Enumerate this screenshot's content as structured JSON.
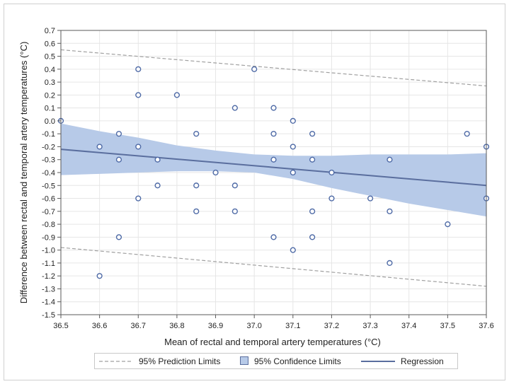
{
  "chart_data": {
    "type": "scatter",
    "title": "",
    "xlabel": "Mean of rectal and temporal artery temperatures (°C)",
    "ylabel": "Difference between rectal and temporal artery temperatures (°C)",
    "xlim": [
      36.5,
      37.6
    ],
    "ylim": [
      -1.5,
      0.7
    ],
    "x_ticks": [
      "36.5",
      "36.6",
      "36.7",
      "36.8",
      "36.9",
      "37.0",
      "37.1",
      "37.2",
      "37.3",
      "37.4",
      "37.5",
      "37.6"
    ],
    "y_ticks": [
      "0.7",
      "0.6",
      "0.5",
      "0.4",
      "0.3",
      "0.2",
      "0.1",
      "0.0",
      "-0.1",
      "-0.2",
      "-0.3",
      "-0.4",
      "-0.5",
      "-0.6",
      "-0.7",
      "-0.8",
      "-0.9",
      "-1.0",
      "-1.1",
      "-1.2",
      "-1.3",
      "-1.4",
      "-1.5"
    ],
    "grid": true,
    "points": [
      [
        36.5,
        0.0
      ],
      [
        36.6,
        -0.2
      ],
      [
        36.6,
        -1.2
      ],
      [
        36.65,
        -0.1
      ],
      [
        36.65,
        -0.3
      ],
      [
        36.65,
        -0.9
      ],
      [
        36.7,
        0.4
      ],
      [
        36.7,
        0.2
      ],
      [
        36.7,
        -0.2
      ],
      [
        36.7,
        -0.6
      ],
      [
        36.75,
        -0.3
      ],
      [
        36.75,
        -0.5
      ],
      [
        36.8,
        0.2
      ],
      [
        36.85,
        -0.1
      ],
      [
        36.85,
        -0.5
      ],
      [
        36.85,
        -0.7
      ],
      [
        36.9,
        -0.4
      ],
      [
        36.95,
        0.1
      ],
      [
        36.95,
        -0.5
      ],
      [
        36.95,
        -0.7
      ],
      [
        37.0,
        0.4
      ],
      [
        37.05,
        0.1
      ],
      [
        37.05,
        -0.1
      ],
      [
        37.05,
        -0.3
      ],
      [
        37.05,
        -0.9
      ],
      [
        37.1,
        0.0
      ],
      [
        37.1,
        -0.2
      ],
      [
        37.1,
        -0.4
      ],
      [
        37.1,
        -1.0
      ],
      [
        37.15,
        -0.1
      ],
      [
        37.15,
        -0.3
      ],
      [
        37.15,
        -0.7
      ],
      [
        37.15,
        -0.9
      ],
      [
        37.2,
        -0.4
      ],
      [
        37.2,
        -0.6
      ],
      [
        37.3,
        -0.6
      ],
      [
        37.35,
        -0.3
      ],
      [
        37.35,
        -0.7
      ],
      [
        37.35,
        -1.1
      ],
      [
        37.5,
        -0.8
      ],
      [
        37.55,
        -0.1
      ],
      [
        37.6,
        -0.2
      ],
      [
        37.6,
        -0.6
      ]
    ],
    "regression": {
      "x": [
        36.5,
        37.6
      ],
      "y": [
        -0.22,
        -0.5
      ]
    },
    "confidence_band": {
      "x": [
        36.5,
        36.6,
        36.7,
        36.8,
        36.9,
        37.0,
        37.1,
        37.2,
        37.3,
        37.4,
        37.5,
        37.6
      ],
      "lower": [
        -0.42,
        -0.41,
        -0.4,
        -0.39,
        -0.39,
        -0.4,
        -0.45,
        -0.52,
        -0.58,
        -0.64,
        -0.69,
        -0.74
      ],
      "upper": [
        -0.02,
        -0.08,
        -0.13,
        -0.19,
        -0.23,
        -0.26,
        -0.27,
        -0.27,
        -0.26,
        -0.26,
        -0.26,
        -0.25
      ]
    },
    "prediction_limits": {
      "upper": {
        "x": [
          36.5,
          37.6
        ],
        "y": [
          0.55,
          0.27
        ]
      },
      "lower": {
        "x": [
          36.5,
          37.6
        ],
        "y": [
          -0.98,
          -1.28
        ]
      }
    },
    "legend": {
      "placement": "bottom",
      "entries": [
        {
          "label": "95% Prediction Limits",
          "style": "dashed-line"
        },
        {
          "label": "95% Confidence Limits",
          "style": "band"
        },
        {
          "label": "Regression",
          "style": "line"
        }
      ]
    },
    "colors": {
      "band": "#b7cae8",
      "regression": "#5a6e9e",
      "marker": "#4e6aa6",
      "prediction": "#a0a0a0",
      "grid": "#e6e6e6"
    }
  }
}
